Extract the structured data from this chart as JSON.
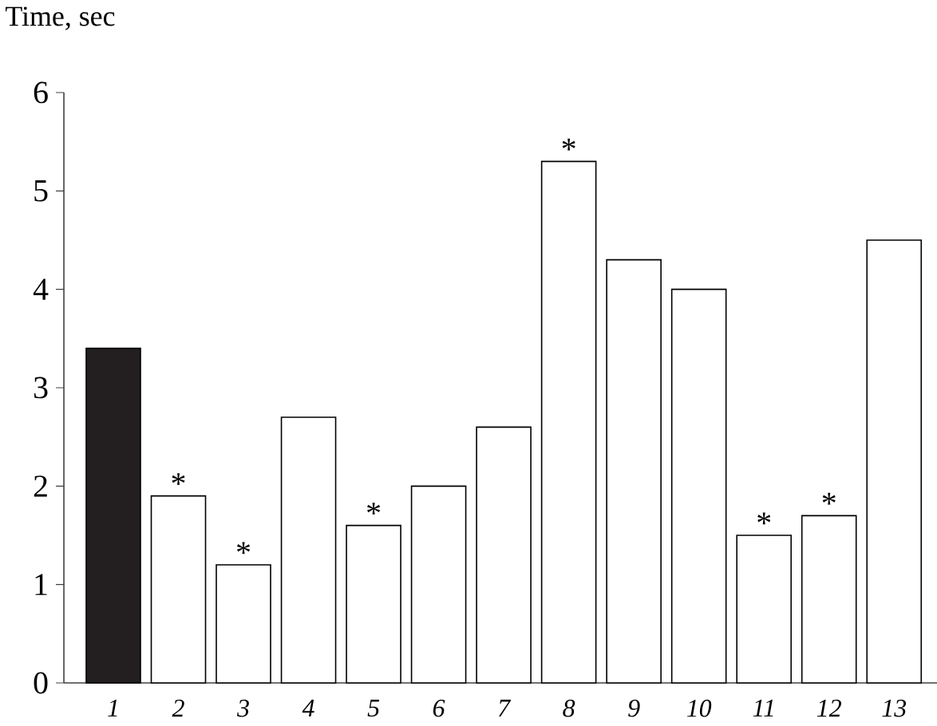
{
  "chart_data": {
    "type": "bar",
    "ylabel": "Time, sec",
    "categories": [
      "1",
      "2",
      "3",
      "4",
      "5",
      "6",
      "7",
      "8",
      "9",
      "10",
      "11",
      "12",
      "13"
    ],
    "values": [
      3.4,
      1.9,
      1.2,
      2.7,
      1.6,
      2.0,
      2.6,
      5.3,
      4.3,
      4.0,
      1.5,
      1.7,
      4.5
    ],
    "colors": [
      "#231f20",
      "#ffffff",
      "#ffffff",
      "#ffffff",
      "#ffffff",
      "#ffffff",
      "#ffffff",
      "#ffffff",
      "#ffffff",
      "#ffffff",
      "#ffffff",
      "#ffffff",
      "#ffffff"
    ],
    "ylim": [
      0,
      6
    ],
    "yticks": [
      0,
      1,
      2,
      3,
      4,
      5,
      6
    ],
    "grid": false,
    "annotations": [
      {
        "text": "*",
        "x": "2",
        "y": 1.9
      },
      {
        "text": "*",
        "x": "3",
        "y": 1.2
      },
      {
        "text": "*",
        "x": "5",
        "y": 1.6
      },
      {
        "text": "*",
        "x": "8",
        "y": 5.3
      },
      {
        "text": "*",
        "x": "11",
        "y": 1.5
      },
      {
        "text": "*",
        "x": "12",
        "y": 1.7
      }
    ]
  }
}
